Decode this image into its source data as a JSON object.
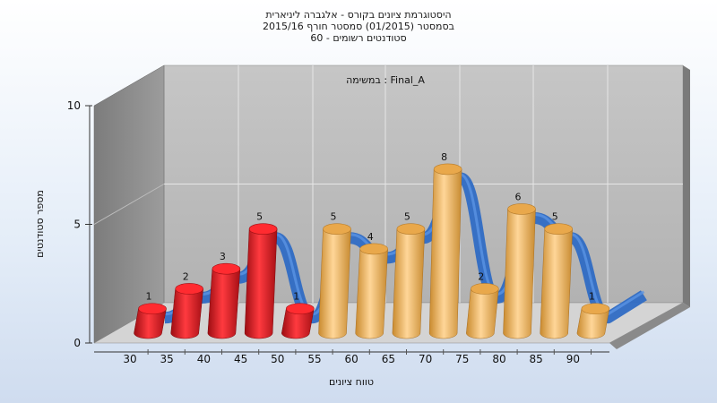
{
  "chart_data": {
    "type": "bar",
    "title_lines": [
      "היסטוגרמת ציונים בקורס - אלגברה ליניארית",
      "בסמסטר  (01/2015)  סמסטר חורף 2015/16",
      "סטודנטים רשומים - 60"
    ],
    "subtitle": "במשימה : Final_A",
    "xlabel": "טווח ציונים",
    "ylabel": "מספר סטודנטים",
    "ylim": [
      0,
      10
    ],
    "yticks": [
      "0",
      "5",
      "10"
    ],
    "xticks": [
      "30",
      "35",
      "40",
      "45",
      "50",
      "55",
      "60",
      "65",
      "70",
      "75",
      "80",
      "85",
      "90"
    ],
    "values": [
      1,
      2,
      3,
      5,
      1,
      5,
      4,
      5,
      8,
      2,
      6,
      5,
      1
    ],
    "bar_colors": [
      "red",
      "red",
      "red",
      "red",
      "red",
      "orange",
      "orange",
      "orange",
      "orange",
      "orange",
      "orange",
      "orange",
      "orange"
    ],
    "grid": true,
    "trend_line": true
  },
  "colors": {
    "red_bar": "#e31b23",
    "orange_bar": "#f0b45a",
    "trend": "#2f6cc4",
    "wall": "#b8b8b8",
    "side_wall": "#8e8e8e",
    "floor": "#d8d8d8"
  }
}
